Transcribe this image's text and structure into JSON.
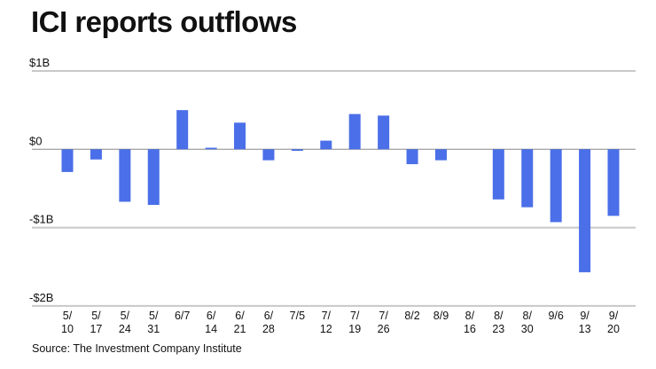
{
  "chart_data": {
    "type": "bar",
    "title": "ICI reports outflows",
    "xlabel": "",
    "ylabel": "",
    "ylim": [
      -2,
      1
    ],
    "yticks": [
      1,
      0,
      -1,
      -2
    ],
    "ytick_labels": [
      "$1B",
      "$0",
      "-$1B",
      "-$2B"
    ],
    "grid": true,
    "color": "#4a6fe8",
    "categories": [
      "5/10",
      "5/17",
      "5/24",
      "5/31",
      "6/7",
      "6/14",
      "6/21",
      "6/28",
      "7/5",
      "7/12",
      "7/19",
      "7/26",
      "8/2",
      "8/9",
      "8/16",
      "8/23",
      "8/30",
      "9/6",
      "9/13",
      "9/20"
    ],
    "category_lines": [
      [
        "5/",
        "10"
      ],
      [
        "5/",
        "17"
      ],
      [
        "5/",
        "24"
      ],
      [
        "5/",
        "31"
      ],
      [
        "6/7",
        ""
      ],
      [
        "6/",
        "14"
      ],
      [
        "6/",
        "21"
      ],
      [
        "6/",
        "28"
      ],
      [
        "7/5",
        ""
      ],
      [
        "7/",
        "12"
      ],
      [
        "7/",
        "19"
      ],
      [
        "7/",
        "26"
      ],
      [
        "8/2",
        ""
      ],
      [
        "8/9",
        ""
      ],
      [
        "8/",
        "16"
      ],
      [
        "8/",
        "23"
      ],
      [
        "8/",
        "30"
      ],
      [
        "9/6",
        ""
      ],
      [
        "9/",
        "13"
      ],
      [
        "9/",
        "20"
      ]
    ],
    "values": [
      -0.29,
      -0.13,
      -0.67,
      -0.71,
      0.5,
      0.02,
      0.34,
      -0.14,
      -0.02,
      0.11,
      0.45,
      0.43,
      -0.19,
      -0.14,
      0,
      -0.64,
      -0.74,
      -0.93,
      -1.57,
      -0.85
    ],
    "units": "billions USD"
  },
  "source": "Source: The Investment Company Institute"
}
